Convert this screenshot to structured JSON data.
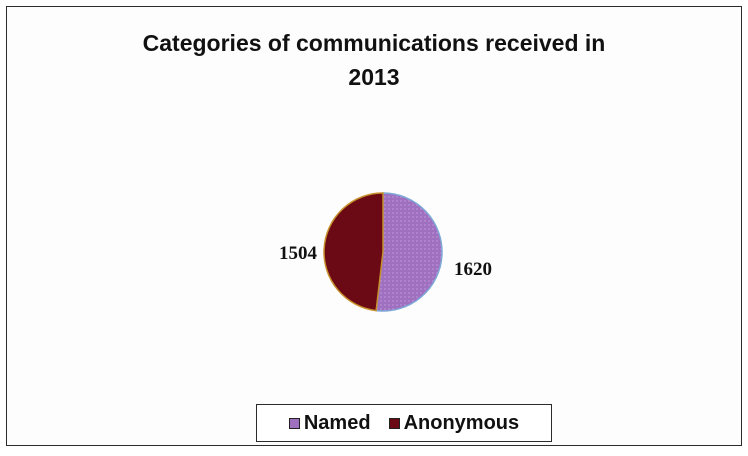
{
  "chart_data": {
    "type": "pie",
    "title_lines": [
      "Categories of communications received in",
      "2013"
    ],
    "categories": [
      "Named",
      "Anonymous"
    ],
    "values": [
      1620,
      1504
    ],
    "data_labels": [
      "1620",
      "1504"
    ],
    "colors": [
      "#a070c0",
      "#6b0a14"
    ],
    "start_angle_deg": 0,
    "direction": "clockwise",
    "legend_position": "bottom"
  }
}
